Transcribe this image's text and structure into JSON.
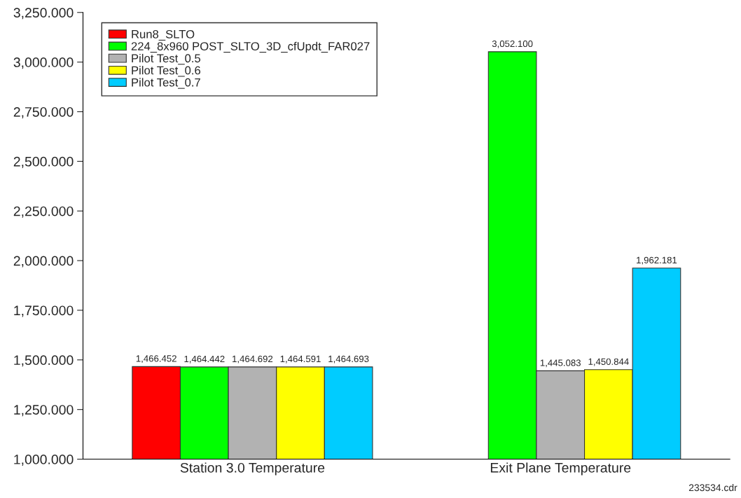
{
  "chart_data": {
    "type": "bar",
    "categories": [
      "Station 3.0 Temperature",
      "Exit Plane Temperature"
    ],
    "series": [
      {
        "name": "Run8_SLTO",
        "color": "#ff0000",
        "values": [
          1466.452,
          null
        ],
        "value_labels": [
          "1,466.452",
          null
        ]
      },
      {
        "name": "224_8x960 POST_SLTO_3D_cfUpdt_FAR027",
        "color": "#00ff00",
        "values": [
          1464.442,
          3052.1
        ],
        "value_labels": [
          "1,464.442",
          "3,052.100"
        ]
      },
      {
        "name": "Pilot Test_0.5",
        "color": "#b2b2b2",
        "values": [
          1464.692,
          1445.083
        ],
        "value_labels": [
          "1,464.692",
          "1,445.083"
        ]
      },
      {
        "name": "Pilot Test_0.6",
        "color": "#ffff00",
        "values": [
          1464.591,
          1450.844
        ],
        "value_labels": [
          "1,464.591",
          "1,450.844"
        ]
      },
      {
        "name": "Pilot Test_0.7",
        "color": "#00ccff",
        "values": [
          1464.693,
          1962.181
        ],
        "value_labels": [
          "1,464.693",
          "1,962.181"
        ]
      }
    ],
    "ylim": [
      1000,
      3250
    ],
    "yticks": [
      {
        "value": 1000,
        "label": "1,000.000"
      },
      {
        "value": 1250,
        "label": "1,250.000"
      },
      {
        "value": 1500,
        "label": "1,500.000"
      },
      {
        "value": 1750,
        "label": "1,750.000"
      },
      {
        "value": 2000,
        "label": "2,000.000"
      },
      {
        "value": 2250,
        "label": "2,250.000"
      },
      {
        "value": 2500,
        "label": "2,500.000"
      },
      {
        "value": 2750,
        "label": "2,750.000"
      },
      {
        "value": 3000,
        "label": "3,000.000"
      },
      {
        "value": 3250,
        "label": "3,250.000"
      }
    ],
    "grid": false,
    "legend": "top left",
    "annotations": [
      "233534.cdr"
    ]
  }
}
